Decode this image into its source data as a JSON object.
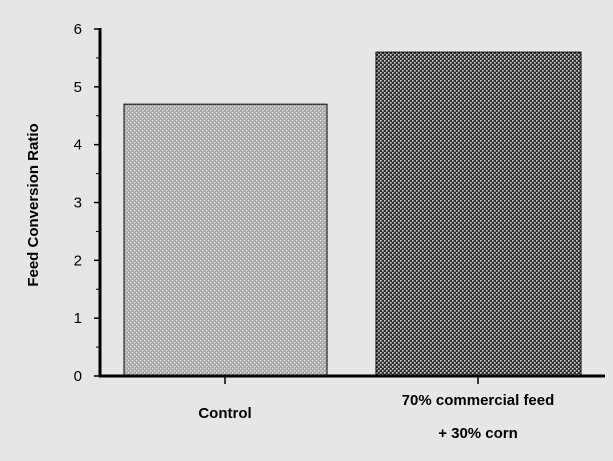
{
  "chart_data": {
    "type": "bar",
    "title": "",
    "xlabel": "",
    "ylabel": "Feed Conversion Ratio",
    "ylim": [
      0,
      6
    ],
    "yticks": [
      0,
      1,
      2,
      3,
      4,
      5,
      6
    ],
    "grid": false,
    "categories": [
      "Control",
      "70% commercial feed + 30% corn"
    ],
    "category_label_lines": [
      [
        "Control"
      ],
      [
        "70% commercial feed",
        "+ 30% corn"
      ]
    ],
    "values": [
      4.7,
      5.6
    ],
    "bar_patterns": [
      "fine-dots",
      "dense-crosshatch"
    ],
    "colors": {
      "background": "#e6e6e6",
      "bar1_base": "#a8a8a8",
      "bar2_base": "#3a3a3a",
      "axis": "#000000"
    }
  }
}
